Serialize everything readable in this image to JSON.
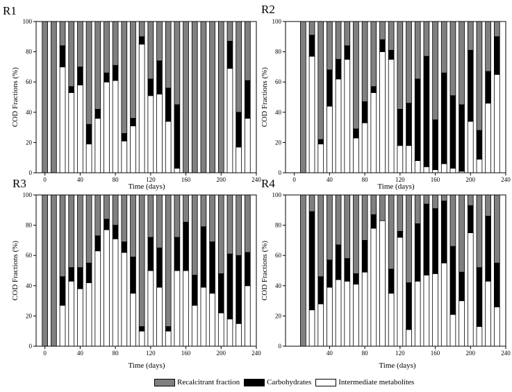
{
  "legend": {
    "recalcitrant": "Recalcitrant fraction",
    "carbohydrates": "Carbohydrates",
    "intermediate": "Intermediate metabolites"
  },
  "colors": {
    "recalcitrant": "#808080",
    "carbohydrates": "#000000",
    "intermediate": "#ffffff"
  },
  "chart_data": [
    {
      "type": "bar",
      "stacked": true,
      "title": "R1",
      "xlabel": "Time (days)",
      "ylabel": "COD Fractions (%)",
      "xlim": [
        -10,
        240
      ],
      "ylim": [
        0,
        100
      ],
      "xticks": [
        0,
        40,
        80,
        120,
        160,
        200,
        240
      ],
      "yticks": [
        0,
        20,
        40,
        60,
        80,
        100
      ],
      "x": [
        0,
        10,
        20,
        30,
        40,
        50,
        60,
        70,
        80,
        90,
        100,
        110,
        120,
        130,
        140,
        150,
        160,
        170,
        180,
        190,
        200,
        210,
        220,
        230
      ],
      "series": [
        {
          "name": "Intermediate metabolites",
          "values": [
            0,
            0,
            70,
            53,
            58,
            19,
            36,
            60,
            61,
            21,
            31,
            85,
            51,
            52,
            34,
            3,
            0,
            0,
            0,
            0,
            0,
            69,
            17,
            36
          ]
        },
        {
          "name": "Carbohydrates",
          "values": [
            0,
            0,
            14,
            4,
            12,
            13,
            6,
            6,
            10,
            5,
            5,
            5,
            11,
            22,
            22,
            42,
            0,
            0,
            0,
            0,
            0,
            18,
            23,
            25
          ]
        },
        {
          "name": "Recalcitrant fraction",
          "values": [
            100,
            100,
            16,
            43,
            30,
            68,
            58,
            34,
            29,
            74,
            64,
            10,
            38,
            26,
            44,
            55,
            100,
            100,
            100,
            100,
            100,
            13,
            60,
            39
          ]
        }
      ]
    },
    {
      "type": "bar",
      "stacked": true,
      "title": "R2",
      "xlabel": "Time (days)",
      "ylabel": "COD Fractions (%)",
      "xlim": [
        -10,
        240
      ],
      "ylim": [
        0,
        100
      ],
      "xticks": [
        0,
        40,
        80,
        120,
        160,
        200,
        240
      ],
      "yticks": [
        0,
        20,
        40,
        60,
        80,
        100
      ],
      "x": [
        10,
        20,
        30,
        40,
        50,
        60,
        70,
        80,
        90,
        100,
        110,
        120,
        130,
        140,
        150,
        160,
        170,
        180,
        190,
        200,
        210,
        220,
        230
      ],
      "series": [
        {
          "name": "Intermediate metabolites",
          "values": [
            0,
            77,
            19,
            44,
            62,
            75,
            23,
            33,
            53,
            80,
            75,
            18,
            18,
            8,
            4,
            2,
            6,
            3,
            1,
            34,
            9,
            46,
            65
          ]
        },
        {
          "name": "Carbohydrates",
          "values": [
            0,
            14,
            3,
            24,
            13,
            9,
            6,
            14,
            4,
            8,
            6,
            24,
            28,
            54,
            73,
            33,
            60,
            48,
            44,
            47,
            19,
            21,
            25
          ]
        },
        {
          "name": "Recalcitrant fraction",
          "values": [
            100,
            9,
            78,
            32,
            25,
            16,
            71,
            53,
            43,
            12,
            19,
            58,
            54,
            38,
            23,
            65,
            34,
            49,
            55,
            19,
            72,
            33,
            10
          ]
        }
      ]
    },
    {
      "type": "bar",
      "stacked": true,
      "title": "R3",
      "xlabel": "Time (days)",
      "ylabel": "COD Fractions (%)",
      "xlim": [
        -10,
        240
      ],
      "ylim": [
        0,
        100
      ],
      "xticks": [
        0,
        40,
        80,
        120,
        160,
        200,
        240
      ],
      "yticks": [
        0,
        20,
        40,
        60,
        80,
        100
      ],
      "x": [
        0,
        10,
        20,
        30,
        40,
        50,
        60,
        70,
        80,
        90,
        100,
        110,
        120,
        130,
        140,
        150,
        160,
        170,
        180,
        190,
        200,
        210,
        220,
        230
      ],
      "series": [
        {
          "name": "Intermediate metabolites",
          "values": [
            0,
            0,
            27,
            43,
            38,
            42,
            63,
            77,
            71,
            62,
            35,
            10,
            50,
            39,
            10,
            50,
            50,
            27,
            39,
            35,
            22,
            18,
            15,
            40
          ]
        },
        {
          "name": "Carbohydrates",
          "values": [
            0,
            0,
            19,
            9,
            14,
            13,
            10,
            7,
            9,
            7,
            24,
            3,
            22,
            26,
            3,
            22,
            32,
            20,
            40,
            34,
            26,
            43,
            45,
            22
          ]
        },
        {
          "name": "Recalcitrant fraction",
          "values": [
            100,
            100,
            54,
            48,
            48,
            45,
            27,
            16,
            20,
            31,
            41,
            87,
            28,
            35,
            87,
            28,
            18,
            53,
            21,
            31,
            52,
            39,
            40,
            38
          ]
        }
      ]
    },
    {
      "type": "bar",
      "stacked": true,
      "title": "R4",
      "xlabel": "Time (days)",
      "ylabel": "COD Fractions (%)",
      "xlim": [
        -10,
        240
      ],
      "ylim": [
        0,
        100
      ],
      "xticks": [
        40,
        80,
        120,
        160,
        200,
        240
      ],
      "yticks": [
        0,
        20,
        40,
        60,
        80,
        100
      ],
      "x": [
        10,
        20,
        30,
        40,
        50,
        60,
        70,
        80,
        90,
        100,
        110,
        120,
        130,
        140,
        150,
        160,
        170,
        180,
        190,
        200,
        210,
        220,
        230
      ],
      "series": [
        {
          "name": "Intermediate metabolites",
          "values": [
            0,
            24,
            28,
            39,
            44,
            43,
            41,
            49,
            78,
            83,
            35,
            72,
            11,
            43,
            47,
            48,
            55,
            21,
            30,
            75,
            13,
            43,
            26
          ]
        },
        {
          "name": "Carbohydrates",
          "values": [
            0,
            65,
            18,
            18,
            23,
            15,
            7,
            21,
            9,
            0,
            16,
            4,
            31,
            38,
            47,
            43,
            41,
            45,
            19,
            18,
            39,
            43,
            29
          ]
        },
        {
          "name": "Recalcitrant fraction",
          "values": [
            100,
            11,
            54,
            43,
            33,
            42,
            52,
            30,
            13,
            17,
            49,
            24,
            58,
            19,
            6,
            9,
            4,
            34,
            51,
            7,
            48,
            14,
            45
          ]
        }
      ]
    }
  ]
}
